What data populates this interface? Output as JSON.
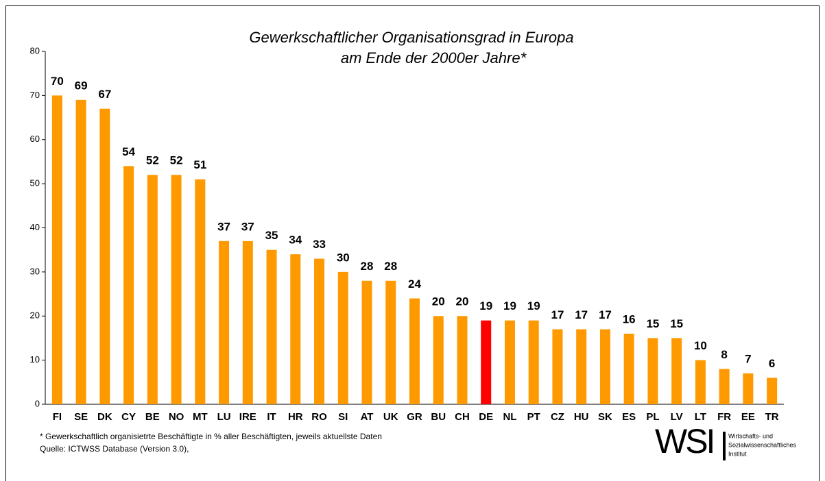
{
  "chart_data": {
    "type": "bar",
    "title": "Gewerkschaftlicher Organisationsgrad in Europa",
    "subtitle": "am Ende der 2000er Jahre*",
    "categories": [
      "FI",
      "SE",
      "DK",
      "CY",
      "BE",
      "NO",
      "MT",
      "LU",
      "IRE",
      "IT",
      "HR",
      "RO",
      "SI",
      "AT",
      "UK",
      "GR",
      "BU",
      "CH",
      "DE",
      "NL",
      "PT",
      "CZ",
      "HU",
      "SK",
      "ES",
      "PL",
      "LV",
      "LT",
      "FR",
      "EE",
      "TR"
    ],
    "values": [
      70,
      69,
      67,
      54,
      52,
      52,
      51,
      37,
      37,
      35,
      34,
      33,
      30,
      28,
      28,
      24,
      20,
      20,
      19,
      19,
      19,
      17,
      17,
      17,
      16,
      15,
      15,
      10,
      8,
      7,
      6
    ],
    "colors": [
      "#ff9900",
      "#ff9900",
      "#ff9900",
      "#ff9900",
      "#ff9900",
      "#ff9900",
      "#ff9900",
      "#ff9900",
      "#ff9900",
      "#ff9900",
      "#ff9900",
      "#ff9900",
      "#ff9900",
      "#ff9900",
      "#ff9900",
      "#ff9900",
      "#ff9900",
      "#ff9900",
      "#ff0000",
      "#ff9900",
      "#ff9900",
      "#ff9900",
      "#ff9900",
      "#ff9900",
      "#ff9900",
      "#ff9900",
      "#ff9900",
      "#ff9900",
      "#ff9900",
      "#ff9900",
      "#ff9900"
    ],
    "ylim": [
      0,
      80
    ],
    "yticks": [
      0,
      10,
      20,
      30,
      40,
      50,
      60,
      70,
      80
    ],
    "grid": false,
    "footnote": "* Gewerkschaftlich organisietrte Beschäftigte in % aller Beschäftigten, jeweils aktuellste Daten",
    "source": "Quelle:  ICTWSS Database (Version 3.0),",
    "logo": {
      "text": "WSI",
      "lines": [
        "Wirtschafts- und",
        "Sozialwissenschaftliches",
        "Institut"
      ]
    }
  }
}
